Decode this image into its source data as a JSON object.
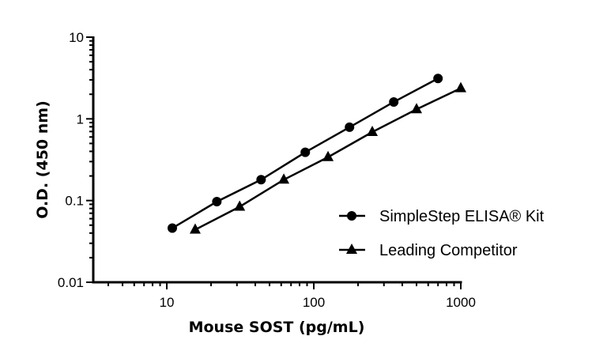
{
  "chart_data": {
    "type": "line",
    "title": "",
    "xlabel": "Mouse SOST (pg/mL)",
    "ylabel": "O.D. (450 nm)",
    "xscale": "log",
    "yscale": "log",
    "xlim": [
      3.16,
      1000
    ],
    "ylim": [
      0.01,
      10
    ],
    "xticks": [
      10,
      100,
      1000
    ],
    "xtick_labels": [
      "10",
      "100",
      "1000"
    ],
    "yticks": [
      0.01,
      0.1,
      1,
      10
    ],
    "ytick_labels": [
      "0.01",
      "0.1",
      "1",
      "10"
    ],
    "grid": false,
    "legend_position": "right",
    "series": [
      {
        "name": "SimpleStep ELISA® Kit",
        "marker": "circle",
        "color": "#000000",
        "x": [
          10.9,
          21.9,
          43.8,
          87.5,
          175,
          350,
          700
        ],
        "y": [
          0.046,
          0.097,
          0.18,
          0.39,
          0.79,
          1.61,
          3.12
        ]
      },
      {
        "name": "Leading Competitor",
        "marker": "triangle",
        "color": "#000000",
        "x": [
          15.6,
          31.3,
          62.5,
          125,
          250,
          500,
          1000
        ],
        "y": [
          0.044,
          0.084,
          0.18,
          0.34,
          0.69,
          1.31,
          2.37
        ]
      }
    ]
  }
}
